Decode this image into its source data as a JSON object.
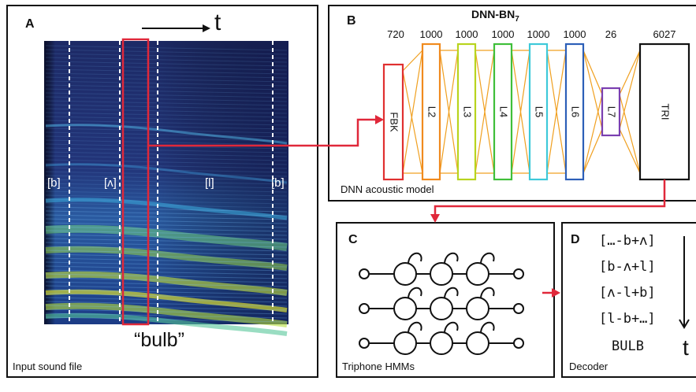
{
  "panel_a": {
    "label": "A",
    "time_axis": "t",
    "phonemes": [
      "[b]",
      "[ʌ]",
      "[l]",
      "[b]"
    ],
    "word": "“bulb”",
    "caption": "Input sound file"
  },
  "panel_b": {
    "label": "B",
    "title_main": "DNN-BN",
    "title_sub": "7",
    "layers": [
      {
        "size": "720",
        "name": "FBK",
        "color": "#e03030"
      },
      {
        "size": "1000",
        "name": "L2",
        "color": "#f08a1e"
      },
      {
        "size": "1000",
        "name": "L3",
        "color": "#b8d41e"
      },
      {
        "size": "1000",
        "name": "L4",
        "color": "#3fbf3a"
      },
      {
        "size": "1000",
        "name": "L5",
        "color": "#3ec9d9"
      },
      {
        "size": "1000",
        "name": "L6",
        "color": "#2c5fb8"
      },
      {
        "size": "26",
        "name": "L7",
        "color": "#7a3fb0"
      },
      {
        "size": "6027",
        "name": "TRI",
        "color": "#111111"
      }
    ],
    "caption": "DNN acoustic model"
  },
  "panel_c": {
    "label": "C",
    "caption": "Triphone HMMs"
  },
  "panel_d": {
    "label": "D",
    "triphones": [
      "[…-b+ʌ]",
      "[b-ʌ+l]",
      "[ʌ-l+b]",
      "[l-b+…]"
    ],
    "word": "BULB",
    "time_axis": "t",
    "caption": "Decoder"
  },
  "colors": {
    "arrow": "#e0283a",
    "connection": "#f0a020"
  }
}
